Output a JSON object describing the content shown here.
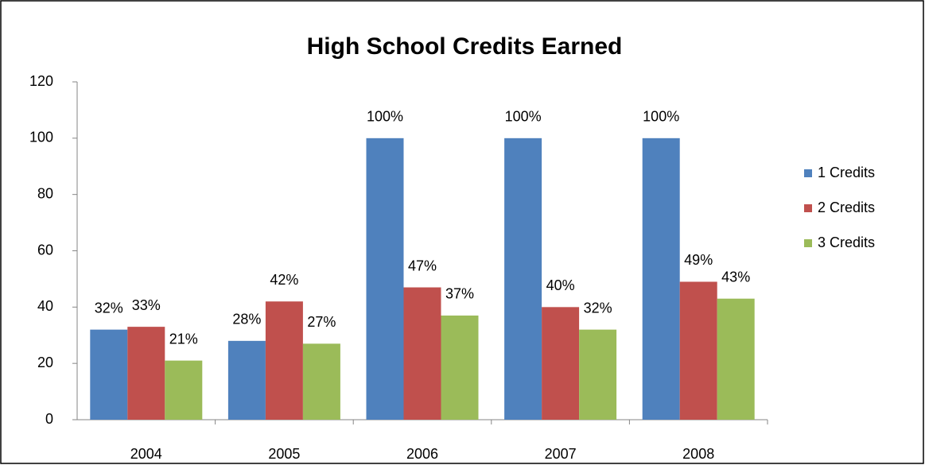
{
  "chart_data": {
    "type": "bar",
    "title": "High School Credits Earned",
    "categories": [
      "2004",
      "2005",
      "2006",
      "2007",
      "2008"
    ],
    "series": [
      {
        "name": "1 Credits",
        "color": "#4f81bd",
        "values": [
          32,
          28,
          100,
          100,
          100
        ],
        "value_labels": [
          "32%",
          "28%",
          "100%",
          "100%",
          "100%"
        ]
      },
      {
        "name": "2 Credits",
        "color": "#c0504d",
        "values": [
          33,
          42,
          47,
          40,
          49
        ],
        "value_labels": [
          "33%",
          "42%",
          "47%",
          "40%",
          "49%"
        ]
      },
      {
        "name": "3 Credits",
        "color": "#9bbb59",
        "values": [
          21,
          27,
          37,
          32,
          43
        ],
        "value_labels": [
          "21%",
          "27%",
          "37%",
          "32%",
          "43%"
        ]
      }
    ],
    "ylim": [
      0,
      120
    ],
    "yticks": [
      0,
      20,
      40,
      60,
      80,
      100,
      120
    ],
    "grid": false,
    "legend": "right"
  }
}
